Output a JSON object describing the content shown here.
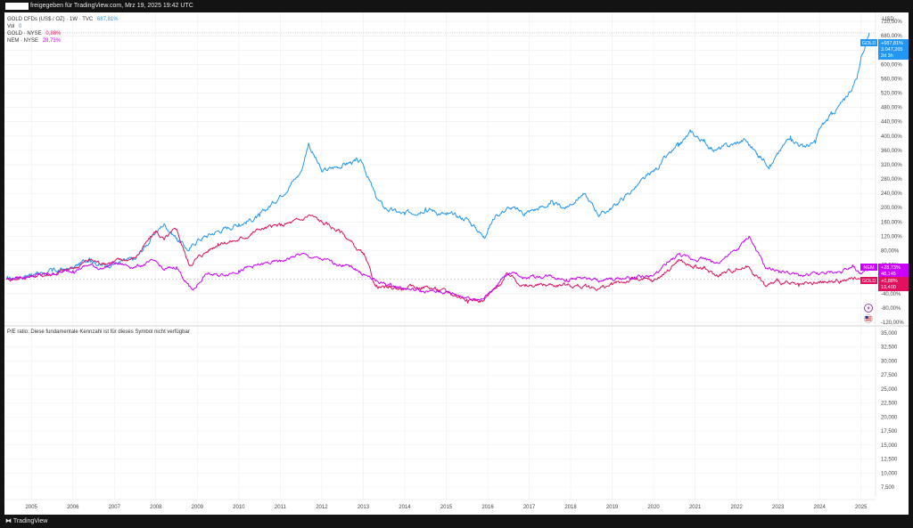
{
  "header": {
    "publisher_text": "freigegeben für TradingView.com, Mrz 19, 2025 19:42 UTC"
  },
  "footer": {
    "logo_text": "TradingView"
  },
  "legend": {
    "main": {
      "name": "GOLD CFDs (US$ / OZ) · 1W · TVC",
      "value": "687,81%"
    },
    "vol": {
      "name": "Vol",
      "value": "0"
    },
    "gold_nyse": {
      "name": "GOLD · NYSE",
      "value": "0,88%"
    },
    "nem_nyse": {
      "name": "NEM · NYSE",
      "value": "28,73%"
    }
  },
  "price_axis": {
    "currency": "USD",
    "ticks": [
      "720,00%",
      "680,00%",
      "640,00%",
      "600,00%",
      "560,00%",
      "520,00%",
      "480,00%",
      "440,00%",
      "400,00%",
      "360,00%",
      "320,00%",
      "280,00%",
      "240,00%",
      "200,00%",
      "160,00%",
      "120,00%",
      "80,00%",
      "40,00%",
      "-40,00%",
      "-80,00%",
      "-120,00%"
    ]
  },
  "time_axis": {
    "years": [
      "2005",
      "2006",
      "2007",
      "2008",
      "2009",
      "2010",
      "2011",
      "2012",
      "2013",
      "2014",
      "2015",
      "2016",
      "2017",
      "2018",
      "2019",
      "2020",
      "2021",
      "2022",
      "2023",
      "2024",
      "2025"
    ]
  },
  "badges": {
    "gold_cfd": {
      "symbol": "GOLD",
      "change": "+687,81%",
      "price": "3.047,265",
      "countdown": "2d 3h",
      "color": "#2196f3"
    },
    "nem": {
      "symbol": "NEM",
      "change": "+28,73%",
      "price": "48,145",
      "color": "#cc00ff"
    },
    "gold_nyse": {
      "symbol": "GOLD",
      "change": "+0,88%",
      "price": "19,400",
      "color": "#e0115f"
    }
  },
  "pe_pane": {
    "message": "P/E ratio: Diese fundamentale Kennzahl ist für dieses Symbol nicht verfügbar",
    "ticks": [
      "35,000",
      "32,500",
      "30,000",
      "27,500",
      "25,000",
      "22,500",
      "20,000",
      "17,500",
      "15,000",
      "12,500",
      "10,000",
      "7,500"
    ]
  },
  "chart_data": {
    "type": "line",
    "x_unit": "year",
    "y_unit": "percent change",
    "ylim": [
      -130,
      745
    ],
    "xlim": [
      2004.35,
      2025.35
    ],
    "grid": true,
    "series": [
      {
        "name": "GOLD CFDs (US$ / OZ) · 1W · TVC",
        "color": "#2196f3",
        "x": [
          2004.4,
          2005.0,
          2005.5,
          2006.0,
          2006.4,
          2006.7,
          2007.0,
          2007.5,
          2008.0,
          2008.2,
          2008.5,
          2008.8,
          2009.0,
          2009.5,
          2010.0,
          2010.5,
          2011.0,
          2011.5,
          2011.68,
          2012.0,
          2012.5,
          2012.8,
          2013.0,
          2013.3,
          2013.5,
          2014.0,
          2014.5,
          2015.0,
          2015.5,
          2015.9,
          2016.2,
          2016.5,
          2016.9,
          2017.5,
          2017.9,
          2018.3,
          2018.7,
          2019.0,
          2019.5,
          2020.0,
          2020.3,
          2020.6,
          2020.9,
          2021.2,
          2021.5,
          2022.0,
          2022.2,
          2022.5,
          2022.8,
          2023.0,
          2023.3,
          2023.6,
          2023.9,
          2024.0,
          2024.3,
          2024.6,
          2024.9,
          2025.0,
          2025.2
        ],
        "y": [
          0,
          15,
          22,
          30,
          60,
          38,
          45,
          55,
          130,
          155,
          115,
          80,
          110,
          135,
          155,
          175,
          235,
          300,
          380,
          300,
          320,
          330,
          320,
          230,
          200,
          180,
          200,
          180,
          170,
          120,
          180,
          200,
          185,
          210,
          200,
          240,
          180,
          200,
          250,
          300,
          340,
          370,
          410,
          385,
          360,
          380,
          390,
          350,
          320,
          350,
          400,
          370,
          380,
          420,
          460,
          500,
          560,
          620,
          687.81
        ]
      },
      {
        "name": "GOLD · NYSE",
        "color": "#e0115f",
        "x": [
          2004.4,
          2005.0,
          2005.5,
          2006.0,
          2006.4,
          2006.7,
          2007.0,
          2007.5,
          2008.0,
          2008.2,
          2008.5,
          2008.8,
          2009.0,
          2009.5,
          2010.0,
          2010.5,
          2011.0,
          2011.5,
          2011.7,
          2012.0,
          2012.5,
          2012.8,
          2013.0,
          2013.3,
          2013.6,
          2014.0,
          2014.5,
          2015.0,
          2015.5,
          2015.9,
          2016.2,
          2016.5,
          2016.9,
          2017.5,
          2017.9,
          2018.3,
          2018.7,
          2019.0,
          2019.5,
          2020.0,
          2020.3,
          2020.6,
          2020.9,
          2021.2,
          2021.5,
          2022.0,
          2022.3,
          2022.7,
          2023.0,
          2023.5,
          2024.0,
          2024.5,
          2025.0,
          2025.2
        ],
        "y": [
          0,
          8,
          15,
          30,
          55,
          45,
          50,
          60,
          135,
          110,
          140,
          40,
          60,
          100,
          110,
          140,
          150,
          165,
          180,
          160,
          130,
          90,
          70,
          -20,
          -25,
          -25,
          -20,
          -35,
          -55,
          -60,
          -25,
          15,
          -20,
          -15,
          -15,
          -20,
          -25,
          -15,
          0,
          -5,
          20,
          55,
          35,
          30,
          10,
          30,
          35,
          -20,
          -5,
          -20,
          -10,
          -5,
          5,
          0.88
        ]
      },
      {
        "name": "NEM · NYSE",
        "color": "#cc00ff",
        "x": [
          2004.4,
          2005.0,
          2005.5,
          2006.0,
          2006.4,
          2006.7,
          2007.0,
          2007.5,
          2008.0,
          2008.2,
          2008.5,
          2008.8,
          2008.9,
          2009.2,
          2009.5,
          2010.0,
          2010.5,
          2011.0,
          2011.5,
          2011.8,
          2012.0,
          2012.5,
          2012.8,
          2013.0,
          2013.3,
          2013.6,
          2014.0,
          2014.5,
          2015.0,
          2015.5,
          2015.9,
          2016.3,
          2016.6,
          2016.9,
          2017.5,
          2017.9,
          2018.3,
          2018.7,
          2019.0,
          2019.5,
          2020.0,
          2020.3,
          2020.6,
          2020.9,
          2021.2,
          2021.5,
          2022.0,
          2022.3,
          2022.7,
          2023.0,
          2023.5,
          2024.0,
          2024.5,
          2024.8,
          2025.0,
          2025.2
        ],
        "y": [
          0,
          10,
          15,
          25,
          40,
          30,
          45,
          35,
          50,
          25,
          35,
          -20,
          -30,
          15,
          10,
          25,
          40,
          50,
          70,
          60,
          55,
          40,
          30,
          15,
          -5,
          -15,
          -25,
          -35,
          -35,
          -50,
          -55,
          -5,
          20,
          5,
          10,
          0,
          5,
          -5,
          0,
          5,
          10,
          40,
          70,
          55,
          60,
          45,
          80,
          120,
          30,
          25,
          10,
          15,
          20,
          40,
          15,
          28.73
        ]
      }
    ]
  }
}
